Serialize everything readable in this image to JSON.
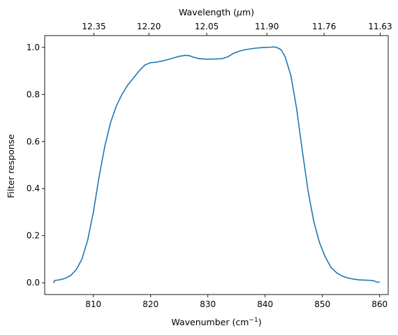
{
  "chart_data": {
    "type": "line",
    "title": "",
    "xlabel": "Wavenumber (cm",
    "xlabel_sup": "−1",
    "xlabel_end": ")",
    "ylabel": "Filter response",
    "top_xlabel": "Wavelength (",
    "top_xlabel_mu": "μ",
    "top_xlabel_end": "m)",
    "xlim": [
      801.5,
      861.5
    ],
    "ylim": [
      -0.05,
      1.05
    ],
    "x_ticks": [
      810,
      820,
      830,
      840,
      850,
      860
    ],
    "x_tick_labels": [
      "810",
      "820",
      "830",
      "840",
      "850",
      "860"
    ],
    "y_ticks": [
      0.0,
      0.2,
      0.4,
      0.6,
      0.8,
      1.0
    ],
    "y_tick_labels": [
      "0.0",
      "0.2",
      "0.4",
      "0.6",
      "0.8",
      "1.0"
    ],
    "top_ticks_wavenumber": [
      810.1,
      819.7,
      829.8,
      840.3,
      850.3,
      860.1
    ],
    "top_tick_labels": [
      "12.35",
      "12.20",
      "12.05",
      "11.90",
      "11.76",
      "11.63"
    ],
    "grid": false,
    "color": "#1f77b4",
    "series": [
      {
        "x": [
          803.0,
          803.3,
          804.0,
          805.0,
          806.0,
          807.0,
          808.0,
          809.0,
          810.0,
          811.0,
          812.0,
          813.0,
          814.0,
          815.0,
          816.0,
          817.0,
          818.0,
          819.0,
          820.0,
          821.0,
          822.0,
          823.0,
          824.0,
          825.0,
          826.0,
          826.7,
          827.5,
          828.5,
          829.5,
          830.5,
          831.5,
          832.5,
          833.5,
          834.5,
          835.5,
          836.5,
          837.5,
          838.5,
          839.5,
          840.5,
          841.5,
          842.0,
          842.8,
          843.5,
          844.5,
          845.5,
          846.5,
          847.5,
          848.5,
          849.5,
          850.5,
          851.5,
          852.5,
          853.5,
          854.5,
          855.5,
          856.5,
          857.5,
          858.5,
          859.0,
          859.5,
          860.0
        ],
        "y": [
          0.0,
          0.01,
          0.012,
          0.018,
          0.03,
          0.055,
          0.1,
          0.18,
          0.3,
          0.45,
          0.58,
          0.68,
          0.75,
          0.8,
          0.84,
          0.87,
          0.9,
          0.925,
          0.935,
          0.937,
          0.942,
          0.948,
          0.955,
          0.962,
          0.966,
          0.965,
          0.958,
          0.952,
          0.95,
          0.95,
          0.951,
          0.952,
          0.96,
          0.975,
          0.984,
          0.99,
          0.994,
          0.997,
          0.999,
          1.0,
          1.002,
          1.0,
          0.99,
          0.96,
          0.88,
          0.74,
          0.56,
          0.39,
          0.26,
          0.17,
          0.11,
          0.065,
          0.042,
          0.028,
          0.02,
          0.015,
          0.012,
          0.011,
          0.01,
          0.008,
          0.003,
          0.002
        ]
      }
    ]
  }
}
